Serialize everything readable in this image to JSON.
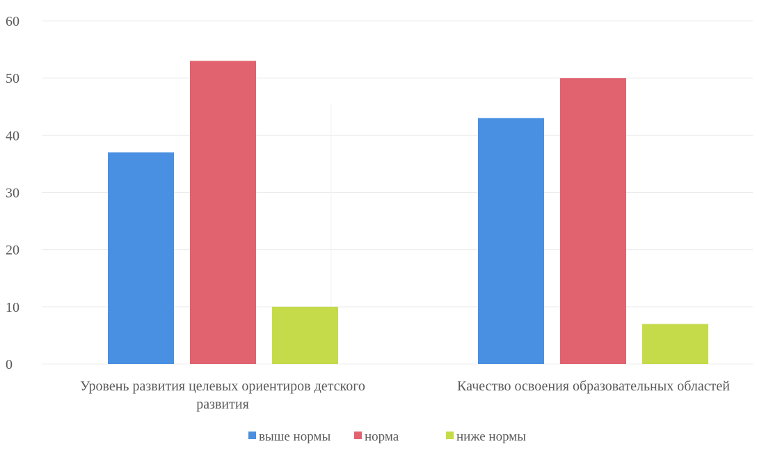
{
  "chart_data": {
    "type": "bar",
    "categories": [
      [
        "Уровень развития целевых ориентиров детского",
        "развития"
      ],
      [
        "Качество освоения образовательных областей"
      ]
    ],
    "series": [
      {
        "name": "выше нормы",
        "values": [
          37,
          43
        ],
        "color": "#4a90e2"
      },
      {
        "name": "норма",
        "values": [
          53,
          50
        ],
        "color": "#e0636f"
      },
      {
        "name": "ниже нормы",
        "values": [
          10,
          7
        ],
        "color": "#c5db49"
      }
    ],
    "ylim": [
      0,
      60
    ],
    "yticks": [
      0,
      10,
      20,
      30,
      40,
      50,
      60
    ],
    "grid": true,
    "legend_position": "bottom"
  }
}
